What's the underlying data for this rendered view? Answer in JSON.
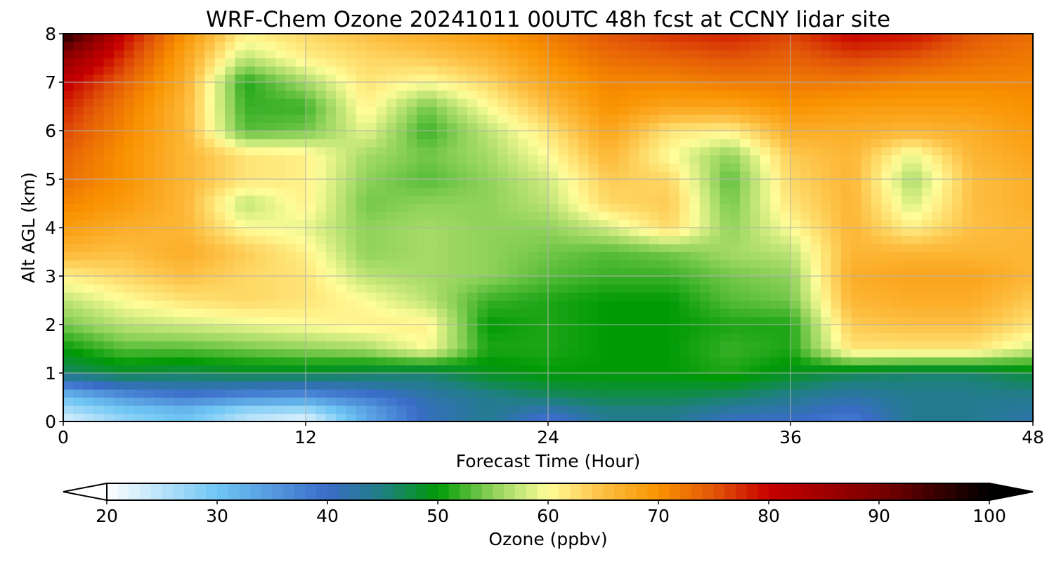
{
  "chart_data": {
    "type": "heatmap",
    "title": "WRF-Chem Ozone  20241011 00UTC 48h fcst at CCNY lidar site",
    "xlabel": "Forecast Time (Hour)",
    "ylabel": "Alt AGL (km)",
    "xlim": [
      0,
      48
    ],
    "ylim": [
      0,
      8
    ],
    "xticks": [
      0,
      12,
      24,
      36,
      48
    ],
    "yticks": [
      0,
      1,
      2,
      3,
      4,
      5,
      6,
      7,
      8
    ],
    "grid": true,
    "x_hours": [
      0,
      3,
      6,
      9,
      12,
      15,
      18,
      21,
      24,
      27,
      30,
      33,
      36,
      39,
      42,
      45,
      48
    ],
    "y_km": [
      0,
      0.25,
      0.5,
      1,
      1.5,
      2,
      2.5,
      3,
      3.5,
      4,
      4.5,
      5,
      5.5,
      6,
      6.5,
      7,
      7.5,
      8
    ],
    "z_ppbv": [
      [
        22,
        27,
        30,
        24,
        21,
        33,
        41,
        44,
        38,
        44,
        44,
        40,
        40,
        38,
        44,
        44,
        42
      ],
      [
        26,
        30,
        32,
        28,
        27,
        34,
        41,
        44,
        42,
        45,
        45,
        43,
        42,
        40,
        44,
        44,
        43
      ],
      [
        30,
        35,
        38,
        36,
        35,
        38,
        42,
        44,
        46,
        47,
        47,
        46,
        44,
        42,
        44,
        44,
        44
      ],
      [
        46,
        48,
        47,
        48,
        48,
        47,
        46,
        49,
        50,
        50,
        50,
        51,
        49,
        47,
        46,
        46,
        48
      ],
      [
        50,
        53,
        53,
        54,
        55,
        56,
        60,
        51,
        51,
        50,
        50,
        52,
        51,
        62,
        62,
        62,
        58
      ],
      [
        54,
        57,
        58,
        59,
        60,
        61,
        61,
        50,
        51,
        50,
        50,
        51,
        51,
        64,
        65,
        65,
        62
      ],
      [
        57,
        60,
        62,
        63,
        62,
        60,
        57,
        52,
        51,
        50,
        50,
        53,
        54,
        66,
        67,
        67,
        64
      ],
      [
        61,
        63,
        65,
        63,
        62,
        57,
        56,
        55,
        53,
        52,
        52,
        54,
        55,
        67,
        68,
        68,
        66
      ],
      [
        66,
        65,
        67,
        64,
        61,
        55,
        56,
        55,
        54,
        53,
        54,
        56,
        57,
        66,
        66,
        66,
        66
      ],
      [
        69,
        67,
        66,
        60,
        59,
        55,
        56,
        55,
        55,
        58,
        63,
        55,
        60,
        66,
        61,
        65,
        66
      ],
      [
        71,
        69,
        66,
        57,
        61,
        54,
        55,
        55,
        57,
        63,
        64,
        54,
        62,
        66,
        58,
        65,
        67
      ],
      [
        73,
        70,
        66,
        62,
        61,
        55,
        53,
        55,
        58,
        64,
        63,
        53,
        63,
        66,
        56,
        65,
        67
      ],
      [
        74,
        70,
        66,
        62,
        61,
        56,
        54,
        56,
        60,
        66,
        60,
        55,
        64,
        66,
        59,
        66,
        68
      ],
      [
        76,
        71,
        66,
        53,
        54,
        59,
        52,
        57,
        62,
        68,
        62,
        61,
        67,
        67,
        66,
        67,
        69
      ],
      [
        78,
        72,
        66,
        52,
        52,
        61,
        54,
        60,
        65,
        70,
        68,
        68,
        70,
        69,
        69,
        69,
        70
      ],
      [
        81,
        74,
        67,
        51,
        56,
        62,
        60,
        63,
        68,
        71,
        71,
        72,
        72,
        72,
        71,
        71,
        71
      ],
      [
        87,
        77,
        68,
        57,
        61,
        63,
        64,
        66,
        70,
        73,
        74,
        75,
        74,
        76,
        75,
        73,
        72
      ],
      [
        98,
        80,
        70,
        61,
        63,
        65,
        67,
        69,
        72,
        75,
        77,
        78,
        76,
        80,
        79,
        75,
        73
      ]
    ]
  },
  "colorbar": {
    "label": "Ozone  (ppbv)",
    "min": 20,
    "max": 100,
    "ticks": [
      "20",
      "30",
      "40",
      "50",
      "60",
      "70",
      "80",
      "90",
      "100"
    ],
    "extend": "both"
  },
  "colormap_stops": [
    {
      "v": 20,
      "c": "#ffffff"
    },
    {
      "v": 30,
      "c": "#6fc6f4"
    },
    {
      "v": 40,
      "c": "#3a6cc8"
    },
    {
      "v": 45,
      "c": "#1f7f82"
    },
    {
      "v": 50,
      "c": "#009a05"
    },
    {
      "v": 55,
      "c": "#8fd25a"
    },
    {
      "v": 60,
      "c": "#fffd99"
    },
    {
      "v": 65,
      "c": "#fdbf42"
    },
    {
      "v": 70,
      "c": "#f99200"
    },
    {
      "v": 75,
      "c": "#e25608"
    },
    {
      "v": 80,
      "c": "#c70000"
    },
    {
      "v": 90,
      "c": "#7a0000"
    },
    {
      "v": 100,
      "c": "#000000"
    }
  ]
}
